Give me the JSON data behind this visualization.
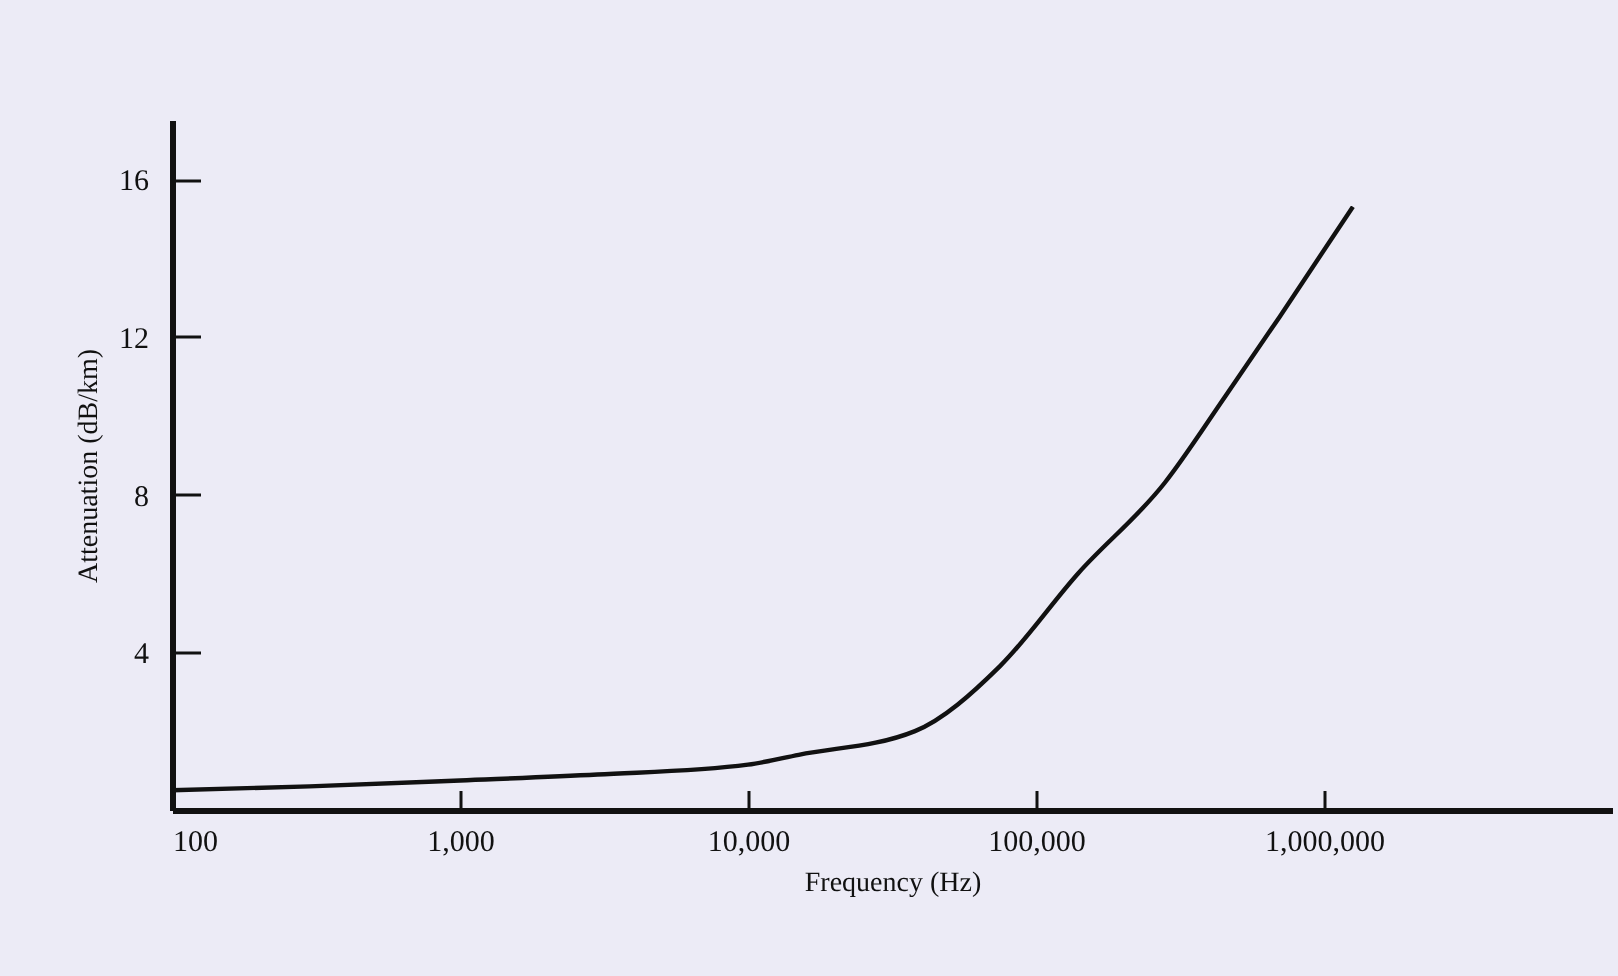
{
  "chart_data": {
    "type": "line",
    "xlabel": "Frequency (Hz)",
    "ylabel": "Attenuation (dB/km)",
    "x": [
      100,
      300,
      1000,
      3000,
      10000,
      15000,
      38000,
      75000,
      140000,
      280000,
      455000,
      700000,
      1260000
    ],
    "series": [
      {
        "color": "#111111",
        "values": [
          0.5,
          0.6,
          0.75,
          0.9,
          1.15,
          1.4,
          2.0,
          3.65,
          6.0,
          8.3,
          10.5,
          12.5,
          15.3
        ]
      }
    ],
    "log": "x",
    "xlim": [
      100,
      10000000
    ],
    "xticks": [
      {
        "value": 100,
        "label": "100"
      },
      {
        "value": 1000,
        "label": "1,000"
      },
      {
        "value": 10000,
        "label": "10,000"
      },
      {
        "value": 100000,
        "label": "100,000"
      },
      {
        "value": 1000000,
        "label": "1,000,000"
      }
    ],
    "ylim": [
      0,
      17.5
    ],
    "yticks": [
      4,
      8,
      12,
      16
    ],
    "grid": false,
    "marker": "none",
    "line_style": "solid"
  }
}
